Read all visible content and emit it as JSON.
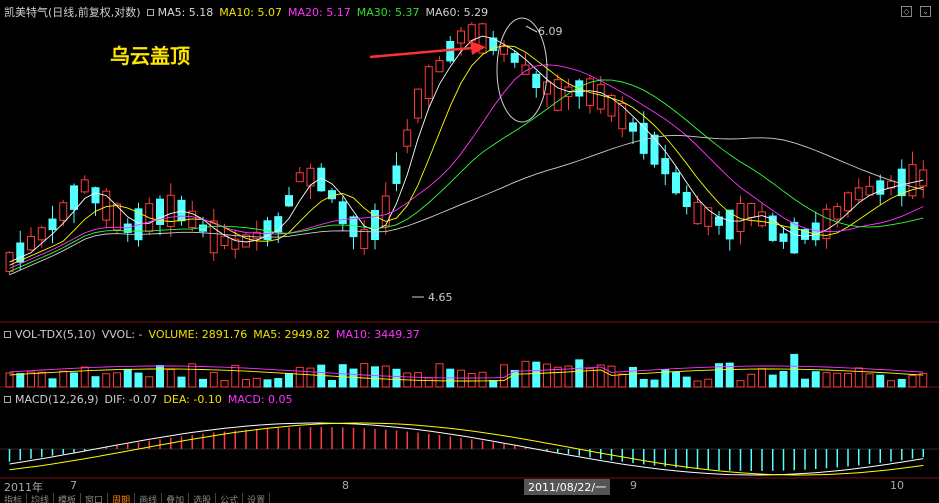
{
  "header_main": {
    "name": "凯美特气",
    "period": "(日线,前复权,对数)",
    "ma5": "MA5: 5.18",
    "ma10": "MA10: 5.07",
    "ma20": "MA20: 5.17",
    "ma30": "MA30: 5.37",
    "ma60": "MA60: 5.29"
  },
  "header_vol": {
    "name": "VOL-TDX(5,10)",
    "vvol": "VVOL: -",
    "volume": "VOLUME: 2891.76",
    "ma5": "MA5: 2949.82",
    "ma10": "MA10: 3449.37"
  },
  "header_macd": {
    "name": "MACD(12,26,9)",
    "dif": "DIF: -0.07",
    "dea": "DEA: -0.10",
    "macd": "MACD: 0.05"
  },
  "annotation": {
    "text": "乌云盖顶",
    "high_label": "6.09",
    "low_label": "4.65"
  },
  "xaxis": {
    "year": "2011年",
    "m7": "7",
    "m8": "8",
    "m9": "9",
    "m10": "10",
    "selected": "2011/08/22/一"
  },
  "tabs": [
    "指标",
    "均线",
    "模板",
    "窗口",
    "周期",
    "画线",
    "叠加",
    "选股",
    "公式",
    "设置"
  ],
  "colors": {
    "up": "#ff3b3b",
    "down": "#54ffff",
    "ma5": "#ffffff",
    "ma10": "#ffff00",
    "ma20": "#ff33ff",
    "ma30": "#33ff33",
    "ma60": "#d0d0d0",
    "arrow": "#ff3030"
  }
}
